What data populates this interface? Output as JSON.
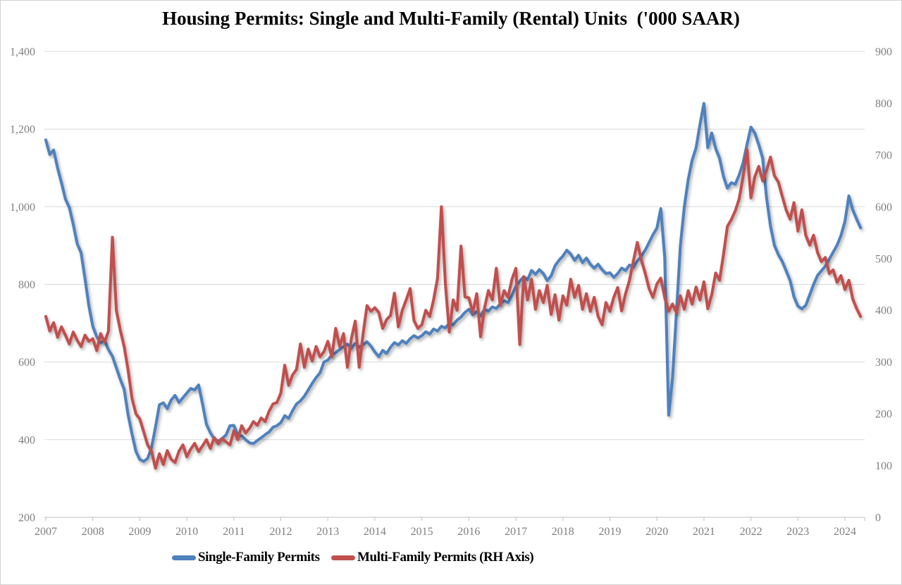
{
  "title": "Housing Permits: Single and Multi-Family (Rental) Units  ('000 SAAR)",
  "legend": {
    "items": [
      {
        "label": "Single-Family Permits",
        "color": "#4F81BD"
      },
      {
        "label": "Multi-Family Permits (RH Axis)",
        "color": "#C0504D"
      }
    ]
  },
  "colors": {
    "single_family_line": "#4F81BD",
    "multi_family_line": "#C0504D",
    "gridline": "#D9D9D9",
    "axis_line": "#BFBFBF",
    "axis_label": "#7f7f7f",
    "title_text": "#000000",
    "frame_border": "#d3d3d3"
  },
  "chart_data": {
    "type": "line",
    "title": "Housing Permits: Single and Multi-Family (Rental) Units ('000 SAAR)",
    "frequency": "monthly",
    "x_start": "2007-01",
    "x_end": "2024-05",
    "x_tick_labels": [
      "2007",
      "2008",
      "2009",
      "2010",
      "2011",
      "2012",
      "2013",
      "2014",
      "2015",
      "2016",
      "2017",
      "2018",
      "2019",
      "2020",
      "2021",
      "2022",
      "2023",
      "2024"
    ],
    "left_axis": {
      "min": 200,
      "max": 1400,
      "tick_step": 200,
      "tick_labels": [
        "1,400",
        "1,200",
        "1,000",
        "800",
        "600",
        "400",
        "200"
      ]
    },
    "right_axis": {
      "min": 0,
      "max": 900,
      "tick_step": 100,
      "tick_labels": [
        "900",
        "800",
        "700",
        "600",
        "500",
        "400",
        "300",
        "200",
        "100",
        "0"
      ]
    },
    "grid": "horizontal-only",
    "legend_position": "bottom",
    "series": [
      {
        "name": "Single-Family Permits",
        "axis": "left",
        "color": "#4F81BD",
        "values": [
          1172,
          1135,
          1146,
          1100,
          1062,
          1020,
          998,
          955,
          905,
          882,
          815,
          745,
          692,
          665,
          650,
          655,
          632,
          615,
          585,
          556,
          530,
          465,
          415,
          370,
          349,
          344,
          352,
          380,
          432,
          490,
          495,
          480,
          502,
          514,
          496,
          508,
          520,
          532,
          528,
          541,
          492,
          440,
          418,
          402,
          396,
          403,
          412,
          436,
          437,
          412,
          410,
          400,
          392,
          390,
          398,
          405,
          413,
          420,
          432,
          436,
          444,
          462,
          455,
          475,
          492,
          500,
          512,
          528,
          545,
          560,
          572,
          600,
          605,
          618,
          624,
          632,
          640,
          646,
          636,
          648,
          638,
          645,
          652,
          641,
          626,
          614,
          630,
          622,
          638,
          650,
          644,
          655,
          648,
          660,
          668,
          662,
          668,
          678,
          672,
          685,
          680,
          692,
          688,
          700,
          696,
          708,
          716,
          728,
          736,
          722,
          730,
          719,
          736,
          731,
          742,
          738,
          750,
          758,
          753,
          772,
          795,
          808,
          820,
          812,
          836,
          826,
          838,
          828,
          810,
          822,
          848,
          862,
          873,
          888,
          878,
          862,
          875,
          856,
          868,
          852,
          842,
          852,
          838,
          828,
          830,
          818,
          828,
          842,
          836,
          850,
          845,
          860,
          872,
          888,
          908,
          928,
          945,
          995,
          870,
          463,
          560,
          730,
          900,
          1000,
          1070,
          1120,
          1152,
          1212,
          1266,
          1152,
          1190,
          1150,
          1125,
          1078,
          1048,
          1062,
          1058,
          1082,
          1113,
          1160,
          1205,
          1190,
          1160,
          1125,
          1023,
          950,
          901,
          877,
          859,
          835,
          810,
          768,
          744,
          737,
          746,
          773,
          800,
          823,
          835,
          847,
          865,
          883,
          901,
          926,
          962,
          1028,
          992,
          968,
          946
        ]
      },
      {
        "name": "Multi-Family Permits (RH Axis)",
        "axis": "right",
        "color": "#C0504D",
        "values": [
          388,
          360,
          376,
          348,
          368,
          352,
          335,
          358,
          342,
          330,
          352,
          340,
          345,
          322,
          355,
          338,
          360,
          541,
          400,
          362,
          330,
          285,
          230,
          200,
          190,
          165,
          140,
          127,
          95,
          123,
          102,
          129,
          112,
          106,
          128,
          140,
          117,
          132,
          143,
          127,
          138,
          150,
          133,
          154,
          142,
          152,
          146,
          140,
          167,
          150,
          177,
          163,
          172,
          185,
          178,
          192,
          185,
          205,
          219,
          222,
          240,
          294,
          255,
          275,
          286,
          335,
          290,
          325,
          302,
          330,
          310,
          320,
          340,
          310,
          365,
          330,
          355,
          290,
          345,
          379,
          290,
          355,
          409,
          398,
          405,
          396,
          365,
          382,
          390,
          433,
          368,
          400,
          420,
          442,
          380,
          365,
          372,
          400,
          388,
          420,
          462,
          600,
          452,
          358,
          420,
          400,
          524,
          426,
          424,
          395,
          432,
          349,
          405,
          438,
          420,
          481,
          409,
          438,
          425,
          460,
          481,
          334,
          465,
          420,
          460,
          402,
          438,
          415,
          448,
          392,
          430,
          381,
          428,
          410,
          460,
          425,
          448,
          402,
          432,
          398,
          425,
          388,
          372,
          415,
          398,
          425,
          444,
          399,
          432,
          458,
          495,
          531,
          498,
          472,
          442,
          425,
          451,
          462,
          425,
          398,
          412,
          395,
          428,
          402,
          438,
          412,
          445,
          420,
          455,
          403,
          430,
          472,
          458,
          508,
          562,
          575,
          592,
          615,
          658,
          710,
          617,
          658,
          678,
          650,
          670,
          696,
          660,
          648,
          620,
          594,
          576,
          608,
          553,
          594,
          545,
          526,
          545,
          512,
          494,
          502,
          471,
          478,
          454,
          467,
          440,
          458,
          422,
          403,
          388
        ]
      }
    ]
  }
}
